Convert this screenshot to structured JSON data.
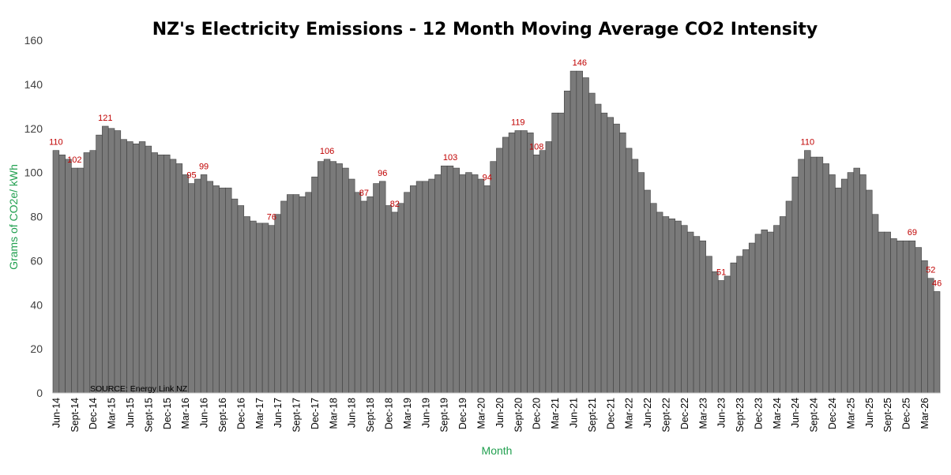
{
  "chart_data": {
    "type": "bar",
    "title": "NZ's Electricity Emissions - 12 Month Moving Average CO2 Intensity",
    "xlabel": "Month",
    "ylabel": "Grams of CO2e/ kWh",
    "source": "SOURCE: Energy Link NZ",
    "ylim": [
      0,
      160
    ],
    "yticks": [
      0,
      20,
      40,
      60,
      80,
      100,
      120,
      140,
      160
    ],
    "grid": false,
    "bar_color": "#7a7a7a",
    "label_color": "#c00000",
    "axis_label_color": "#22a050",
    "tick_labels": [
      "Jun-14",
      "Sept-14",
      "Dec-14",
      "Mar-15",
      "Jun-15",
      "Sept-15",
      "Dec-15",
      "Mar-16",
      "Jun-16",
      "Sept-16",
      "Dec-16",
      "Mar-17",
      "Jun-17",
      "Sept-17",
      "Dec-17",
      "Mar-18",
      "Jun-18",
      "Sept-18",
      "Dec-18",
      "Mar-19",
      "Jun-19",
      "Sept-19",
      "Dec-19",
      "Mar-20",
      "Jun-20",
      "Sept-20",
      "Dec-20",
      "Mar-21",
      "Jun-21",
      "Sept-21",
      "Dec-21",
      "Mar-22",
      "Jun-22",
      "Sept-22",
      "Dec-22",
      "Mar-23",
      "Jun-23",
      "Sept-23",
      "Dec-23",
      "Mar-24",
      "Jun-24",
      "Sept-24",
      "Dec-24",
      "Mar-25",
      "Jun-25",
      "Sept-25",
      "Dec-25",
      "Mar-26"
    ],
    "values": [
      110,
      108,
      106,
      102,
      102,
      109,
      110,
      117,
      121,
      120,
      119,
      115,
      114,
      113,
      114,
      112,
      109,
      108,
      108,
      106,
      104,
      99,
      95,
      97,
      99,
      96,
      94,
      93,
      93,
      88,
      85,
      80,
      78,
      77,
      77,
      76,
      81,
      87,
      90,
      90,
      89,
      91,
      98,
      105,
      106,
      105,
      104,
      102,
      97,
      91,
      87,
      89,
      95,
      96,
      85,
      82,
      86,
      91,
      94,
      96,
      96,
      97,
      99,
      103,
      103,
      102,
      99,
      100,
      99,
      97,
      94,
      105,
      111,
      116,
      118,
      119,
      119,
      118,
      108,
      110,
      114,
      127,
      127,
      137,
      146,
      146,
      143,
      136,
      131,
      127,
      125,
      122,
      118,
      111,
      106,
      100,
      92,
      86,
      82,
      80,
      79,
      78,
      76,
      73,
      71,
      69,
      62,
      55,
      51,
      53,
      59,
      62,
      65,
      68,
      72,
      74,
      73,
      76,
      80,
      87,
      98,
      106,
      110,
      107,
      107,
      104,
      99,
      93,
      97,
      100,
      102,
      99,
      92,
      81,
      73,
      73,
      70,
      69,
      69,
      69,
      66,
      60,
      52,
      46
    ],
    "data_labels": [
      {
        "index": 0,
        "text": "110"
      },
      {
        "index": 3,
        "text": "102"
      },
      {
        "index": 8,
        "text": "121"
      },
      {
        "index": 22,
        "text": "95"
      },
      {
        "index": 24,
        "text": "99"
      },
      {
        "index": 35,
        "text": "76"
      },
      {
        "index": 44,
        "text": "106"
      },
      {
        "index": 50,
        "text": "87"
      },
      {
        "index": 53,
        "text": "96"
      },
      {
        "index": 55,
        "text": "82"
      },
      {
        "index": 64,
        "text": "103"
      },
      {
        "index": 70,
        "text": "94"
      },
      {
        "index": 75,
        "text": "119"
      },
      {
        "index": 78,
        "text": "108"
      },
      {
        "index": 85,
        "text": "146"
      },
      {
        "index": 108,
        "text": "51"
      },
      {
        "index": 122,
        "text": "110"
      },
      {
        "index": 139,
        "text": "69"
      },
      {
        "index": 142,
        "text": "52"
      },
      {
        "index": 143,
        "text": "46"
      }
    ]
  }
}
